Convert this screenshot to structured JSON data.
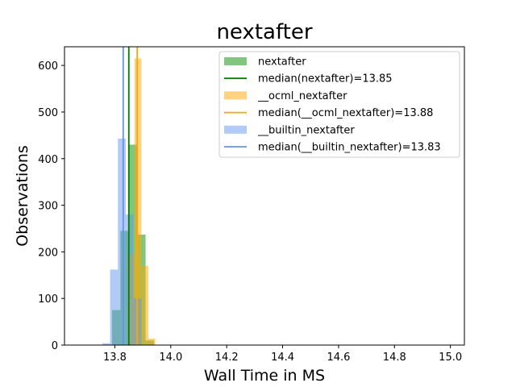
{
  "chart_data": {
    "type": "histogram",
    "title": "nextafter",
    "xlabel": "Wall Time in MS",
    "ylabel": "Observations",
    "xlim": [
      13.62,
      15.05
    ],
    "ylim": [
      0,
      640
    ],
    "xticks": [
      13.8,
      14.0,
      14.2,
      14.4,
      14.6,
      14.8,
      15.0
    ],
    "xtick_labels": [
      "13.8",
      "14.0",
      "14.2",
      "14.4",
      "14.6",
      "14.8",
      "15.0"
    ],
    "yticks": [
      0,
      100,
      200,
      300,
      400,
      500,
      600
    ],
    "ytick_labels": [
      "0",
      "100",
      "200",
      "300",
      "400",
      "500",
      "600"
    ],
    "grid": false,
    "legend_position": "top-right",
    "series": [
      {
        "name": "nextafter",
        "color": "#2ca02c",
        "opacity": 0.6,
        "bin_width": 0.03,
        "bins": [
          {
            "x0": 13.79,
            "count": 75
          },
          {
            "x0": 13.82,
            "count": 245
          },
          {
            "x0": 13.85,
            "count": 430
          },
          {
            "x0": 13.88,
            "count": 237
          },
          {
            "x0": 13.91,
            "count": 10
          }
        ]
      },
      {
        "name": "__ocml_nextafter",
        "color": "#ffa500",
        "opacity": 0.5,
        "bin_width": 0.025,
        "bins": [
          {
            "x0": 13.845,
            "count": 195
          },
          {
            "x0": 13.87,
            "count": 615
          },
          {
            "x0": 13.895,
            "count": 170
          },
          {
            "x0": 13.92,
            "count": 14
          }
        ]
      },
      {
        "name": "__builtin_nextafter",
        "color": "#6495ed",
        "opacity": 0.5,
        "bin_width": 0.028,
        "bins": [
          {
            "x0": 13.755,
            "count": 4
          },
          {
            "x0": 13.783,
            "count": 162
          },
          {
            "x0": 13.811,
            "count": 443
          },
          {
            "x0": 13.839,
            "count": 280
          },
          {
            "x0": 13.867,
            "count": 100
          }
        ]
      }
    ],
    "medians": [
      {
        "name": "median(nextafter)=13.85",
        "value": 13.85,
        "color": "#008000"
      },
      {
        "name": "median(__ocml_nextafter)=13.88",
        "value": 13.88,
        "color": "#ffa500"
      },
      {
        "name": "median(__builtin_nextafter)=13.83",
        "value": 13.83,
        "color": "#6495ed"
      }
    ],
    "legend": [
      {
        "label": "nextafter",
        "kind": "patch",
        "color": "#2ca02c",
        "opacity": 0.6
      },
      {
        "label": "median(nextafter)=13.85",
        "kind": "line",
        "color": "#008000"
      },
      {
        "label": "__ocml_nextafter",
        "kind": "patch",
        "color": "#ffa500",
        "opacity": 0.5
      },
      {
        "label": "median(__ocml_nextafter)=13.88",
        "kind": "line",
        "color": "#ffa500"
      },
      {
        "label": "__builtin_nextafter",
        "kind": "patch",
        "color": "#6495ed",
        "opacity": 0.5
      },
      {
        "label": "median(__builtin_nextafter)=13.83",
        "kind": "line",
        "color": "#6495ed"
      }
    ]
  }
}
